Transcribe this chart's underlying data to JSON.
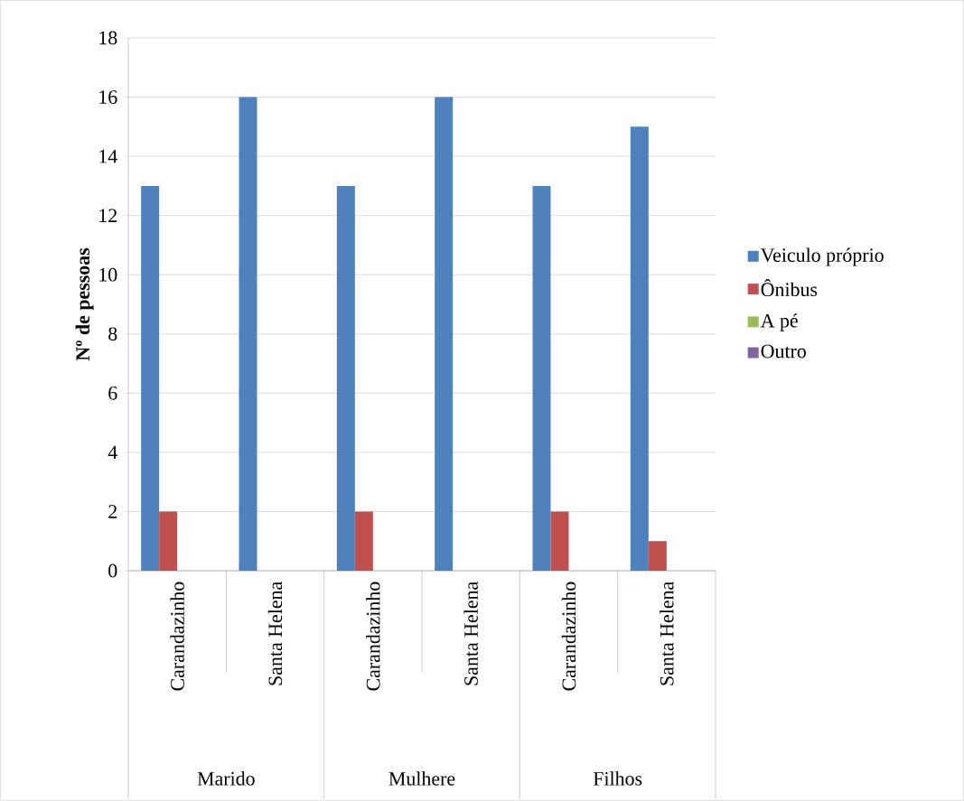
{
  "chart_data": {
    "type": "bar",
    "ylabel": "**Nº de pessoas**",
    "categories": [
      "Carandazinho",
      "Santa Helena",
      "Carandazinho",
      "Santa Helena",
      "Carandazinho",
      "Santa Helena"
    ],
    "series": [
      {
        "name": "Veiculo próprio",
        "color": "#4f81bd",
        "values": [
          13,
          16,
          13,
          16,
          13,
          15
        ]
      },
      {
        "name": "Ônibus",
        "color": "#c0504d",
        "values": [
          2,
          0,
          2,
          0,
          2,
          1
        ]
      },
      {
        "name": "A pé",
        "color": "#9bbb59",
        "values": [
          0,
          0,
          0,
          0,
          0,
          0
        ]
      },
      {
        "name": "Outro",
        "color": "#8064a2",
        "values": [
          0,
          0,
          0,
          0,
          0,
          0
        ]
      }
    ],
    "annotations": [
      "Marido",
      "Mulhere",
      "Filhos"
    ],
    "ylim": [
      0,
      18
    ],
    "yticks": [
      0,
      2,
      4,
      6,
      8,
      10,
      12,
      14,
      16,
      18
    ],
    "grid": "y",
    "legend": "right"
  }
}
